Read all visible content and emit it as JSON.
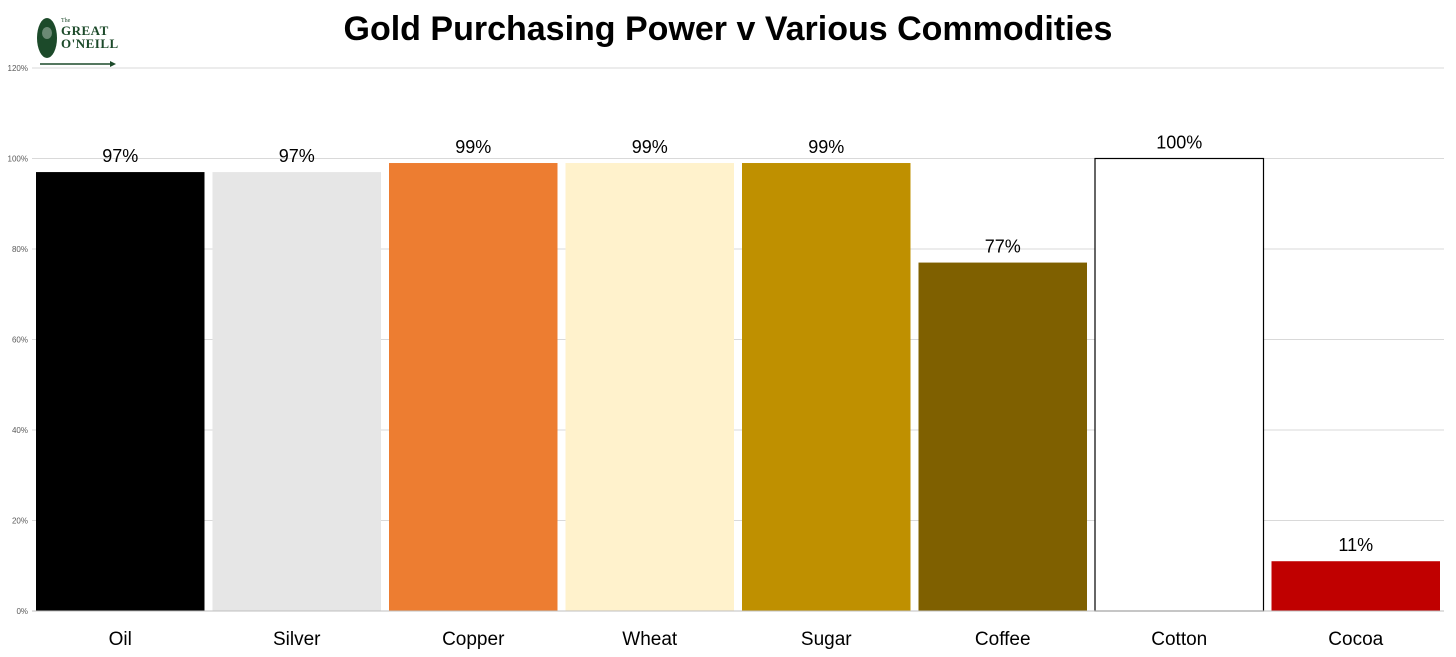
{
  "title": "Gold Purchasing Power v Various Commodities",
  "logo": {
    "line1": "The",
    "line2": "GREAT",
    "line3": "O'NEILL",
    "color": "#1c4a2a"
  },
  "chart_data": {
    "type": "bar",
    "title": "Gold Purchasing Power v Various Commodities",
    "xlabel": "",
    "ylabel": "",
    "ylim": [
      0,
      120
    ],
    "yticks": [
      0,
      20,
      40,
      60,
      80,
      100,
      120
    ],
    "ytick_labels": [
      "0%",
      "20%",
      "40%",
      "60%",
      "80%",
      "100%",
      "120%"
    ],
    "grid": true,
    "categories": [
      "Oil",
      "Silver",
      "Copper",
      "Wheat",
      "Sugar",
      "Coffee",
      "Cotton",
      "Cocoa"
    ],
    "values": [
      97,
      97,
      99,
      99,
      99,
      77,
      100,
      11
    ],
    "data_labels": [
      "97%",
      "97%",
      "99%",
      "99%",
      "99%",
      "77%",
      "100%",
      "11%"
    ],
    "colors": [
      "#000000",
      "#e6e6e6",
      "#ed7d31",
      "#fff2cc",
      "#bf9000",
      "#7f6000",
      "#ffffff",
      "#c00000"
    ],
    "outlines": [
      "none",
      "none",
      "none",
      "none",
      "none",
      "none",
      "#000000",
      "none"
    ]
  }
}
